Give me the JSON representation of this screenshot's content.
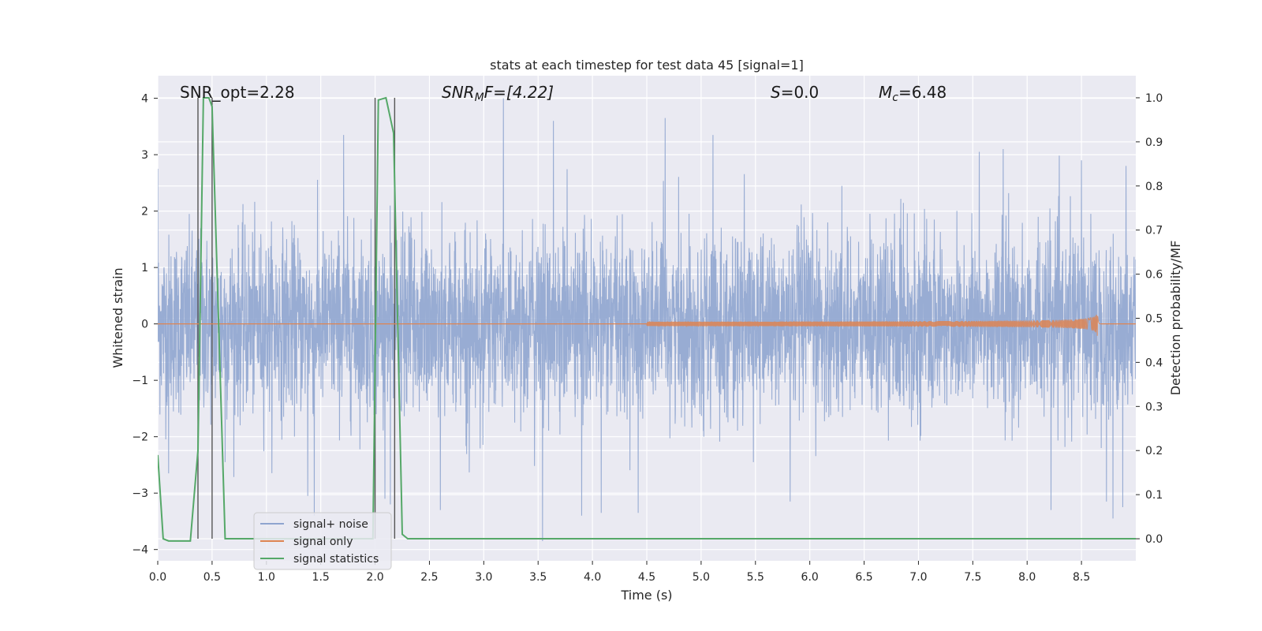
{
  "chart_data": {
    "type": "line",
    "title": "stats at each timestep for test data 45 [signal=1]",
    "xlabel": "Time (s)",
    "ylabel": "Whitened strain",
    "ylabel_right": "Detection probability/MF",
    "xlim": [
      0.0,
      9.0
    ],
    "ylim": [
      -4.2,
      4.4
    ],
    "ylim_right": [
      -0.05,
      1.05
    ],
    "xticks": [
      "0.0",
      "0.5",
      "1.0",
      "1.5",
      "2.0",
      "2.5",
      "3.0",
      "3.5",
      "4.0",
      "4.5",
      "5.0",
      "5.5",
      "6.0",
      "6.5",
      "7.0",
      "7.5",
      "8.0",
      "8.5"
    ],
    "yticks": [
      "−4",
      "−3",
      "−2",
      "−1",
      "0",
      "1",
      "2",
      "3",
      "4"
    ],
    "yticks_right": [
      "0.0",
      "0.1",
      "0.2",
      "0.3",
      "0.4",
      "0.5",
      "0.6",
      "0.7",
      "0.8",
      "0.9",
      "1.0"
    ],
    "grid": true,
    "legend_position": "lower-left",
    "annotations": [
      {
        "id": "snr-opt",
        "text": "SNR_opt=2.28",
        "x": 0.2,
        "y": 4.1
      },
      {
        "id": "snr-mf",
        "text": "SNR_MF=[4.22]",
        "x": 2.6,
        "y": 4.1
      },
      {
        "id": "s-value",
        "text": "S=0.0",
        "x": 5.6,
        "y": 4.1
      },
      {
        "id": "mc-value",
        "text": "Mc=6.48",
        "x": 6.6,
        "y": 4.1
      }
    ],
    "annotation_parts": {
      "snr_mf_base": "SNR",
      "snr_mf_sub": "M",
      "snr_mf_tail": "F=[4.22]",
      "s_sym": "S",
      "s_tail": "=0.0",
      "mc_sym": "M",
      "mc_sub": "c",
      "mc_tail": "=6.48"
    },
    "vertical_lines_x": [
      0.37,
      0.5,
      2.0,
      2.18
    ],
    "series": [
      {
        "name": "signal+ noise",
        "color": "#8fa5cf",
        "kind": "noise",
        "x_range": [
          0.0,
          9.0
        ],
        "mean": 0.0,
        "std": 0.78,
        "samples": 4500,
        "notable_peaks": [
          {
            "x": 0.0,
            "y": 2.75
          },
          {
            "x": 0.1,
            "y": -2.65
          },
          {
            "x": 0.62,
            "y": -2.45
          },
          {
            "x": 1.38,
            "y": -3.05
          },
          {
            "x": 1.44,
            "y": -3.4
          },
          {
            "x": 1.71,
            "y": 3.35
          },
          {
            "x": 2.09,
            "y": -3.1
          },
          {
            "x": 2.14,
            "y": -3.2
          },
          {
            "x": 2.6,
            "y": -3.3
          },
          {
            "x": 3.18,
            "y": 4.0
          },
          {
            "x": 3.54,
            "y": -3.85
          },
          {
            "x": 3.64,
            "y": 3.6
          },
          {
            "x": 3.9,
            "y": -3.4
          },
          {
            "x": 4.08,
            "y": -3.35
          },
          {
            "x": 4.42,
            "y": -3.35
          },
          {
            "x": 4.67,
            "y": 3.65
          },
          {
            "x": 5.11,
            "y": 3.35
          },
          {
            "x": 5.82,
            "y": -3.15
          },
          {
            "x": 8.22,
            "y": -3.3
          },
          {
            "x": 8.73,
            "y": -3.15
          },
          {
            "x": 8.79,
            "y": -3.45
          },
          {
            "x": 8.88,
            "y": -3.25
          },
          {
            "x": 7.78,
            "y": 3.1
          },
          {
            "x": 7.56,
            "y": 3.05
          },
          {
            "x": 8.91,
            "y": 2.8
          },
          {
            "x": 8.5,
            "y": 2.9
          }
        ]
      },
      {
        "name": "signal only",
        "color": "#dd8452",
        "kind": "chirp",
        "start_x": 4.5,
        "merger_x": 8.65,
        "end_x": 8.68,
        "peak_amplitude": 0.22
      },
      {
        "name": "signal statistics",
        "color": "#55a868",
        "axis": "right",
        "x": [
          0.0,
          0.05,
          0.1,
          0.2,
          0.3,
          0.37,
          0.42,
          0.47,
          0.5,
          0.62,
          1.9,
          1.98,
          2.03,
          2.1,
          2.17,
          2.25,
          2.3,
          9.0
        ],
        "values": [
          0.19,
          0.0,
          -0.005,
          -0.005,
          -0.005,
          0.2,
          1.0,
          1.0,
          0.98,
          0.0,
          0.0,
          0.0,
          0.995,
          1.0,
          0.92,
          0.01,
          0.0,
          0.0
        ]
      }
    ]
  }
}
